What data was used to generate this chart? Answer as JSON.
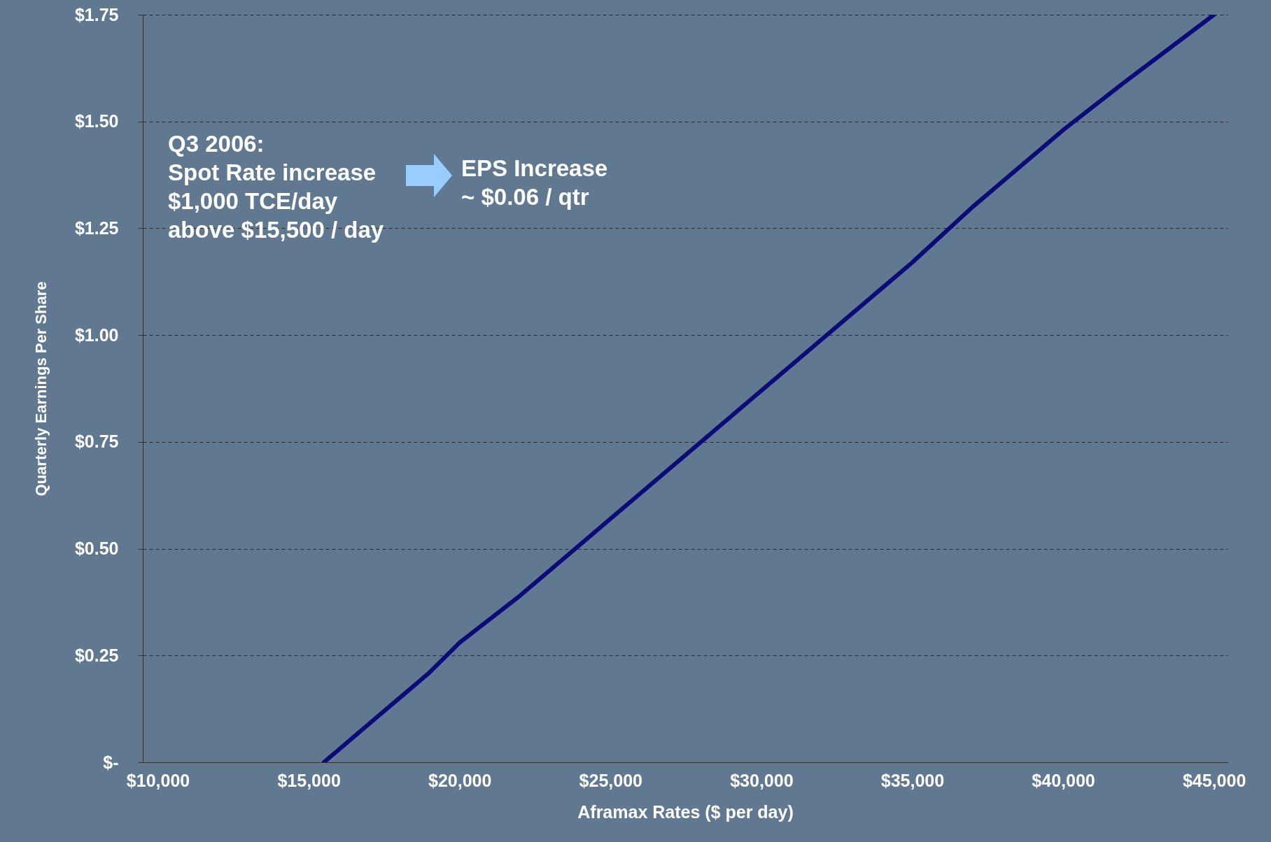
{
  "chart_data": {
    "type": "line",
    "xlabel": "Aframax Rates ($ per day)",
    "ylabel": "Quarterly Earnings Per Share",
    "x": [
      15500,
      16000,
      17000,
      18000,
      19000,
      20000,
      22000,
      25000,
      27000,
      30000,
      32000,
      35000,
      37000,
      40000,
      42000,
      45000
    ],
    "series": [
      {
        "color": "#0a0a78",
        "values": [
          0,
          0.03,
          0.09,
          0.15,
          0.21,
          0.28,
          0.39,
          0.57,
          0.69,
          0.87,
          0.99,
          1.17,
          1.3,
          1.48,
          1.59,
          1.75
        ]
      }
    ],
    "xlim": [
      9500,
      45450
    ],
    "xticks": [
      {
        "value": 10000,
        "label": "$10,000"
      },
      {
        "value": 15000,
        "label": "$15,000"
      },
      {
        "value": 20000,
        "label": "$20,000"
      },
      {
        "value": 25000,
        "label": "$25,000"
      },
      {
        "value": 30000,
        "label": "$30,000"
      },
      {
        "value": 35000,
        "label": "$35,000"
      },
      {
        "value": 40000,
        "label": "$40,000"
      },
      {
        "value": 45000,
        "label": "$45,000"
      }
    ],
    "ylim": [
      0,
      1.75
    ],
    "yticks": [
      {
        "value": 0,
        "label": "$-"
      },
      {
        "value": 0.25,
        "label": "$0.25"
      },
      {
        "value": 0.5,
        "label": "$0.50"
      },
      {
        "value": 0.75,
        "label": "$0.75"
      },
      {
        "value": 1,
        "label": "$1.00"
      },
      {
        "value": 1.25,
        "label": "$1.25"
      },
      {
        "value": 1.5,
        "label": "$1.50"
      },
      {
        "value": 1.75,
        "label": "$1.75"
      }
    ],
    "grid": "y",
    "marker": "none",
    "line_style": "solid",
    "annotations": [
      "Q3 2006:\nSpot Rate increase\n$1,000 TCE/day\nabove $15,500 / day",
      "EPS Increase\n  ~ $0.06 / qtr"
    ]
  }
}
